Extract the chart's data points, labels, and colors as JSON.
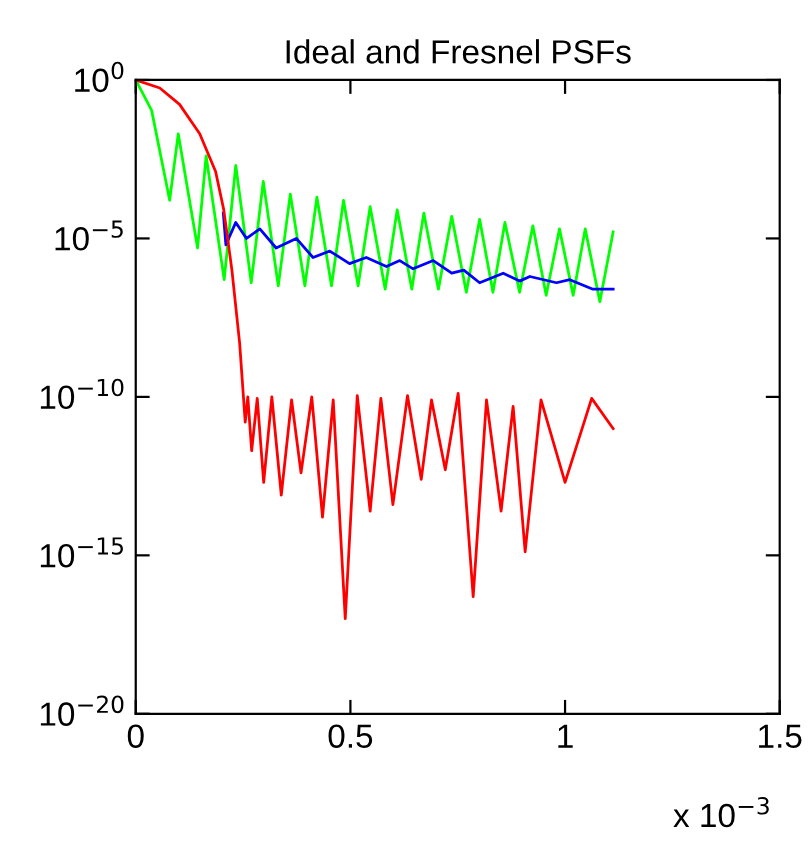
{
  "chart_data": {
    "type": "line",
    "title": "Ideal and Fresnel PSFs",
    "annotations": [
      "x 10$^{−3}$"
    ],
    "log": "y",
    "xlim": [
      0,
      1.5
    ],
    "xticks": [
      0,
      0.5,
      1,
      1.5
    ],
    "ylim": [
      1e-20,
      1
    ],
    "yticks": [
      {
        "value": 1e-20,
        "label": "10$^{−20}$"
      },
      {
        "value": 1e-15,
        "label": "10$^{−15}$"
      },
      {
        "value": 1e-10,
        "label": "10$^{−10}$"
      },
      {
        "value": 1e-05,
        "label": "10$^{−5}$"
      },
      {
        "value": 1,
        "label": "10$^{0}$"
      }
    ],
    "grid": false,
    "legend": false,
    "marker": "none",
    "line_style": "solid",
    "series": [
      {
        "color": "#00ff00",
        "x": [
          0,
          0.037,
          0.079,
          0.099,
          0.144,
          0.164,
          0.206,
          0.233,
          0.269,
          0.297,
          0.332,
          0.36,
          0.394,
          0.422,
          0.456,
          0.484,
          0.518,
          0.546,
          0.581,
          0.609,
          0.643,
          0.671,
          0.705,
          0.736,
          0.77,
          0.801,
          0.832,
          0.86,
          0.894,
          0.925,
          0.956,
          0.987,
          1.019,
          1.047,
          1.081,
          1.112
        ],
        "values": [
          1,
          0.11,
          0.00016,
          0.02,
          5e-06,
          0.004,
          5e-07,
          0.002,
          4e-07,
          0.00063,
          3.2e-07,
          0.00025,
          3.2e-07,
          0.0002,
          3.2e-07,
          0.00016,
          3.2e-07,
          0.0001,
          2.5e-07,
          8e-05,
          2.5e-07,
          6.3e-05,
          2.5e-07,
          5e-05,
          2e-07,
          4e-05,
          2e-07,
          3.2e-05,
          2e-07,
          2.5e-05,
          1.6e-07,
          2e-05,
          1.6e-07,
          2e-05,
          1e-07,
          1.6e-05
        ]
      },
      {
        "color": "#0000ff",
        "x": [
          0.204,
          0.21,
          0.233,
          0.258,
          0.289,
          0.327,
          0.374,
          0.413,
          0.452,
          0.498,
          0.537,
          0.584,
          0.615,
          0.646,
          0.693,
          0.736,
          0.764,
          0.801,
          0.856,
          0.894,
          0.918,
          0.98,
          1.011,
          1.065,
          1.112
        ],
        "values": [
          6.3e-05,
          6.3e-06,
          3.2e-05,
          1e-05,
          2e-05,
          5e-06,
          1e-05,
          2.5e-06,
          4e-06,
          1.6e-06,
          2.5e-06,
          1.3e-06,
          2e-06,
          1.1e-06,
          2e-06,
          8e-07,
          1e-06,
          4e-07,
          8e-07,
          4.5e-07,
          6.3e-07,
          4e-07,
          5e-07,
          2.5e-07,
          2.5e-07
        ]
      },
      {
        "color": "#ff0000",
        "x": [
          0,
          0.056,
          0.102,
          0.149,
          0.186,
          0.205,
          0.224,
          0.242,
          0.255,
          0.261,
          0.27,
          0.283,
          0.298,
          0.317,
          0.339,
          0.363,
          0.385,
          0.41,
          0.435,
          0.46,
          0.488,
          0.516,
          0.546,
          0.571,
          0.599,
          0.633,
          0.665,
          0.689,
          0.721,
          0.751,
          0.786,
          0.817,
          0.851,
          0.879,
          0.907,
          0.944,
          1.0,
          1.062,
          1.112
        ],
        "values": [
          1,
          0.56,
          0.17,
          0.02,
          0.0013,
          8e-05,
          1e-06,
          5e-09,
          1.6e-11,
          1e-10,
          2e-12,
          9e-11,
          2e-13,
          1e-10,
          8e-14,
          8e-11,
          4e-13,
          1e-10,
          1.6e-14,
          8e-11,
          1e-17,
          1.1e-10,
          2.5e-14,
          9e-11,
          4e-14,
          1.1e-10,
          2.5e-13,
          8e-11,
          5e-13,
          1.3e-10,
          5e-17,
          8e-11,
          2.5e-14,
          5e-11,
          1.3e-15,
          8e-11,
          2e-13,
          9e-11,
          1e-11
        ]
      }
    ]
  }
}
